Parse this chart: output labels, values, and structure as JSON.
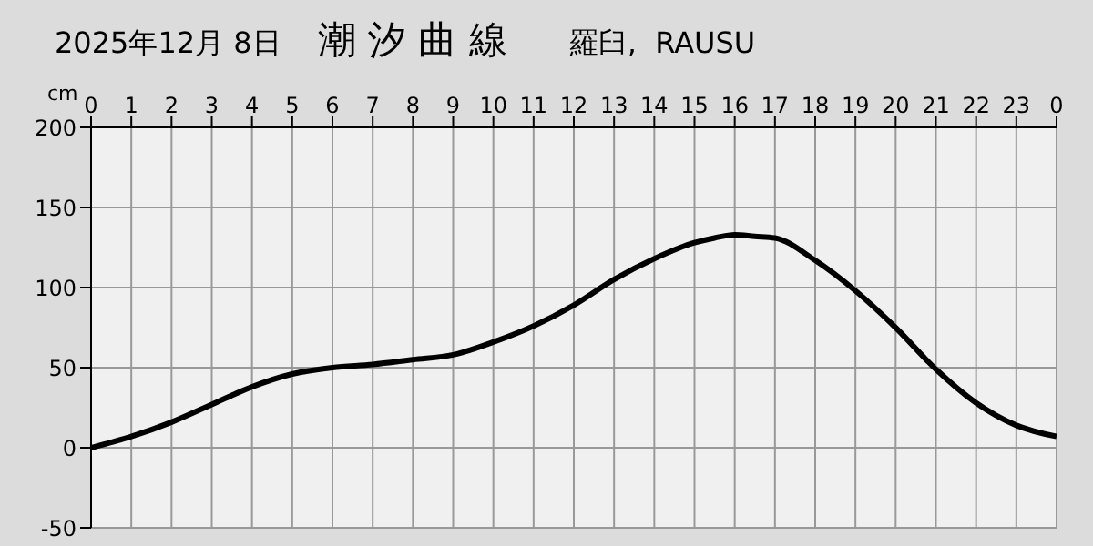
{
  "chart_data": {
    "type": "line",
    "title": "潮 汐 曲 線",
    "subtitle": "2025年12月 8日",
    "annotations": [
      "羅臼,  RAUSU"
    ],
    "ylabel": "cm",
    "x": [
      "2025-12-08T00:00",
      "2025-12-08T01:00",
      "2025-12-08T02:00",
      "2025-12-08T03:00",
      "2025-12-08T04:00",
      "2025-12-08T05:00",
      "2025-12-08T06:00",
      "2025-12-08T07:00",
      "2025-12-08T08:00",
      "2025-12-08T09:00",
      "2025-12-08T10:00",
      "2025-12-08T11:00",
      "2025-12-08T12:00",
      "2025-12-08T13:00",
      "2025-12-08T14:00",
      "2025-12-08T15:00",
      "2025-12-08T15:30",
      "2025-12-08T16:00",
      "2025-12-08T16:30",
      "2025-12-08T17:00",
      "2025-12-08T18:00",
      "2025-12-08T19:00",
      "2025-12-08T20:00",
      "2025-12-08T21:00",
      "2025-12-08T22:00",
      "2025-12-08T23:00",
      "2025-12-09T00:00"
    ],
    "series": [
      {
        "color": "#000000",
        "values": [
          0,
          7,
          16,
          27,
          38,
          46,
          50,
          52,
          55,
          58,
          66,
          76,
          89,
          105,
          118,
          128,
          131,
          133,
          132,
          131,
          117,
          98,
          75,
          49,
          28,
          14,
          7
        ]
      }
    ],
    "xlim": [
      "2025-12-08T00:00",
      "2025-12-09T00:00"
    ],
    "xticks": [
      {
        "value": "2025-12-08T00:00",
        "label": "0"
      },
      {
        "value": "2025-12-08T01:00",
        "label": "1"
      },
      {
        "value": "2025-12-08T02:00",
        "label": "2"
      },
      {
        "value": "2025-12-08T03:00",
        "label": "3"
      },
      {
        "value": "2025-12-08T04:00",
        "label": "4"
      },
      {
        "value": "2025-12-08T05:00",
        "label": "5"
      },
      {
        "value": "2025-12-08T06:00",
        "label": "6"
      },
      {
        "value": "2025-12-08T07:00",
        "label": "7"
      },
      {
        "value": "2025-12-08T08:00",
        "label": "8"
      },
      {
        "value": "2025-12-08T09:00",
        "label": "9"
      },
      {
        "value": "2025-12-08T10:00",
        "label": "10"
      },
      {
        "value": "2025-12-08T11:00",
        "label": "11"
      },
      {
        "value": "2025-12-08T12:00",
        "label": "12"
      },
      {
        "value": "2025-12-08T13:00",
        "label": "13"
      },
      {
        "value": "2025-12-08T14:00",
        "label": "14"
      },
      {
        "value": "2025-12-08T15:00",
        "label": "15"
      },
      {
        "value": "2025-12-08T16:00",
        "label": "16"
      },
      {
        "value": "2025-12-08T17:00",
        "label": "17"
      },
      {
        "value": "2025-12-08T18:00",
        "label": "18"
      },
      {
        "value": "2025-12-08T19:00",
        "label": "19"
      },
      {
        "value": "2025-12-08T20:00",
        "label": "20"
      },
      {
        "value": "2025-12-08T21:00",
        "label": "21"
      },
      {
        "value": "2025-12-08T22:00",
        "label": "22"
      },
      {
        "value": "2025-12-08T23:00",
        "label": "23"
      },
      {
        "value": "2025-12-09T00:00",
        "label": "0"
      }
    ],
    "ylim": [
      -50,
      200
    ],
    "yticks": [
      -50,
      0,
      50,
      100,
      150,
      200
    ],
    "grid": true,
    "marker": "none",
    "line_style": "solid",
    "legend": false
  }
}
